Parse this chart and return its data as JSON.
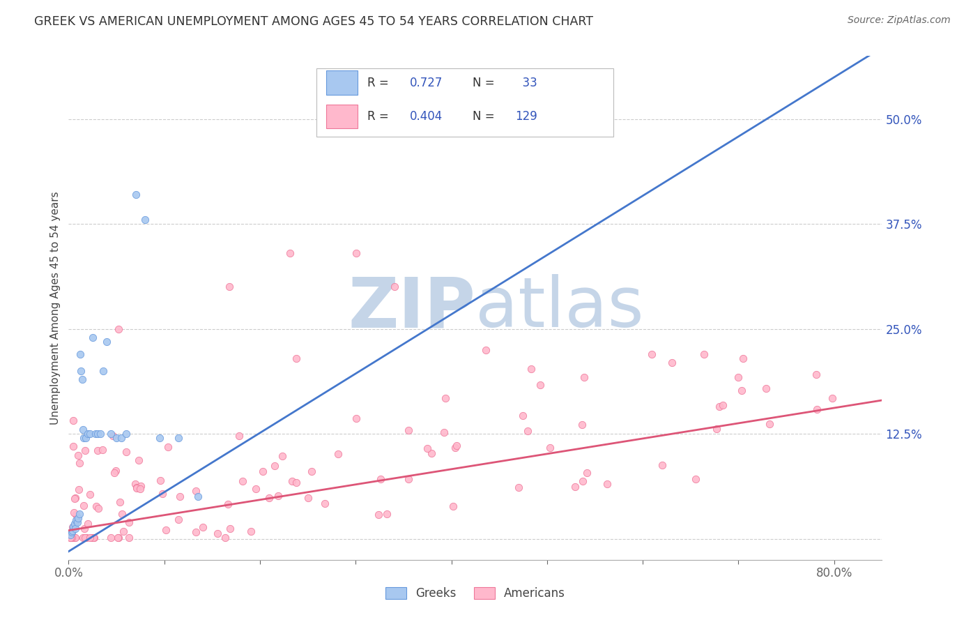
{
  "title": "GREEK VS AMERICAN UNEMPLOYMENT AMONG AGES 45 TO 54 YEARS CORRELATION CHART",
  "source": "Source: ZipAtlas.com",
  "ylabel": "Unemployment Among Ages 45 to 54 years",
  "xlim": [
    0.0,
    0.85
  ],
  "ylim": [
    -0.025,
    0.575
  ],
  "xticks": [
    0.0,
    0.1,
    0.2,
    0.3,
    0.4,
    0.5,
    0.6,
    0.7,
    0.8
  ],
  "yticks": [
    0.0,
    0.125,
    0.25,
    0.375,
    0.5
  ],
  "yticklabels": [
    "",
    "12.5%",
    "25.0%",
    "37.5%",
    "50.0%"
  ],
  "watermark_zip": "ZIP",
  "watermark_atlas": "atlas",
  "watermark_color": "#d0dff0",
  "background_color": "#ffffff",
  "grid_color": "#cccccc",
  "tick_color": "#3355bb",
  "greeks_face_color": "#a8c8f0",
  "greeks_edge_color": "#6699dd",
  "greeks_line_color": "#4477cc",
  "americans_face_color": "#ffb8cc",
  "americans_edge_color": "#ee7799",
  "americans_line_color": "#dd5577",
  "R_greek": 0.727,
  "N_greek": 33,
  "R_american": 0.404,
  "N_american": 129,
  "legend_color": "#3355bb",
  "greek_line_x0": 0.0,
  "greek_line_y0": -0.015,
  "greek_line_x1": 0.85,
  "greek_line_y1": 0.585,
  "american_line_x0": 0.0,
  "american_line_y0": 0.01,
  "american_line_x1": 0.85,
  "american_line_y1": 0.165
}
